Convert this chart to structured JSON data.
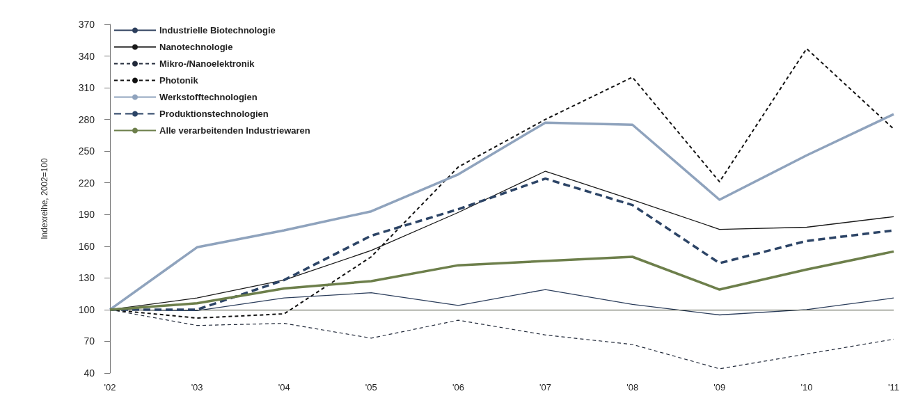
{
  "chart_data": {
    "type": "line",
    "ylabel": "Indexreihe, 2002=100",
    "categories": [
      "'02",
      "'03",
      "'04",
      "'05",
      "'06",
      "'07",
      "'08",
      "'09",
      "'10",
      "'11"
    ],
    "series": [
      {
        "name": "Industrielle Biotechnologie",
        "color": "#2c3e5c",
        "line_style": "solid",
        "values": [
          100,
          99,
          111,
          116,
          104,
          119,
          105,
          95,
          100,
          111
        ]
      },
      {
        "name": "Nanotechnologie",
        "color": "#1a1a1a",
        "line_style": "solid",
        "values": [
          100,
          111,
          128,
          156,
          192,
          231,
          204,
          176,
          178,
          188
        ]
      },
      {
        "name": "Mikro-/Nanoelektronik",
        "color": "#222a3a",
        "line_style": "dashed",
        "values": [
          100,
          85,
          87,
          73,
          90,
          76,
          67,
          44,
          58,
          72
        ]
      },
      {
        "name": "Photonik",
        "color": "#111111",
        "line_style": "dashed",
        "values": [
          100,
          92,
          96,
          150,
          235,
          280,
          320,
          221,
          347,
          271
        ]
      },
      {
        "name": "Werkstofftechnologien",
        "color": "#8fa3bd",
        "line_style": "solid",
        "values": [
          100,
          159,
          175,
          193,
          228,
          277,
          275,
          204,
          246,
          285
        ]
      },
      {
        "name": "Produktionstechnologien",
        "color": "#2c4466",
        "line_style": "dashed",
        "values": [
          100,
          100,
          128,
          170,
          195,
          224,
          199,
          144,
          165,
          175
        ]
      },
      {
        "name": "Alle verarbeitenden Industriewaren",
        "color": "#6d7f4b",
        "line_style": "solid",
        "values": [
          100,
          106,
          120,
          127,
          142,
          146,
          150,
          119,
          138,
          155
        ]
      }
    ],
    "ylim": [
      40,
      370
    ],
    "yticks": [
      40,
      70,
      100,
      130,
      160,
      190,
      220,
      250,
      280,
      310,
      340,
      370
    ],
    "ref_lines": [
      {
        "axis": "y",
        "value": 100,
        "color": "#3a3f2a"
      }
    ],
    "grid": false,
    "legend": "top left",
    "marker": "none"
  }
}
